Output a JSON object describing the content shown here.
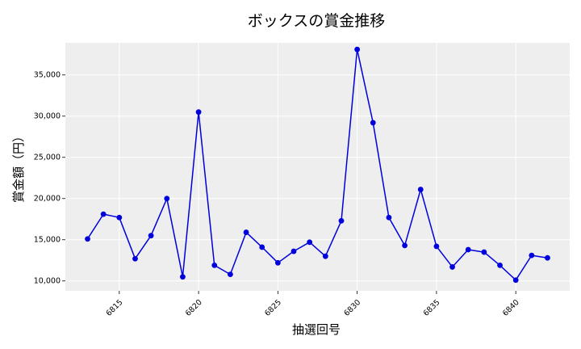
{
  "chart_data": {
    "type": "line",
    "title": "ボックスの賞金推移",
    "xlabel": "抽選回号",
    "ylabel": "賞金額（円）",
    "xlim": [
      6811.6,
      6843.4
    ],
    "ylim": [
      8800,
      38900
    ],
    "x_ticks": [
      6815,
      6820,
      6825,
      6830,
      6835,
      6840
    ],
    "x_tick_labels": [
      "6815",
      "6820",
      "6825",
      "6830",
      "6835",
      "6840"
    ],
    "y_ticks": [
      10000,
      15000,
      20000,
      25000,
      30000,
      35000
    ],
    "y_tick_labels": [
      "10,000",
      "15,000",
      "20,000",
      "25,000",
      "30,000",
      "35,000"
    ],
    "grid": true,
    "series": [
      {
        "color": "#0000dd",
        "x": [
          6813,
          6814,
          6815,
          6816,
          6817,
          6818,
          6819,
          6820,
          6821,
          6822,
          6823,
          6824,
          6825,
          6826,
          6827,
          6828,
          6829,
          6830,
          6831,
          6832,
          6833,
          6834,
          6835,
          6836,
          6837,
          6838,
          6839,
          6840,
          6841,
          6842
        ],
        "values": [
          15100,
          18100,
          17700,
          12700,
          15500,
          20000,
          10500,
          30500,
          11900,
          10800,
          15900,
          14100,
          12200,
          13600,
          14700,
          13000,
          17300,
          38100,
          29200,
          17700,
          14300,
          21100,
          14200,
          11700,
          13800,
          13500,
          11900,
          10100,
          13100,
          12800
        ]
      }
    ]
  },
  "colors": {
    "plot_background": "#eeeeee",
    "grid": "#ffffff",
    "line": "#0000dd"
  }
}
